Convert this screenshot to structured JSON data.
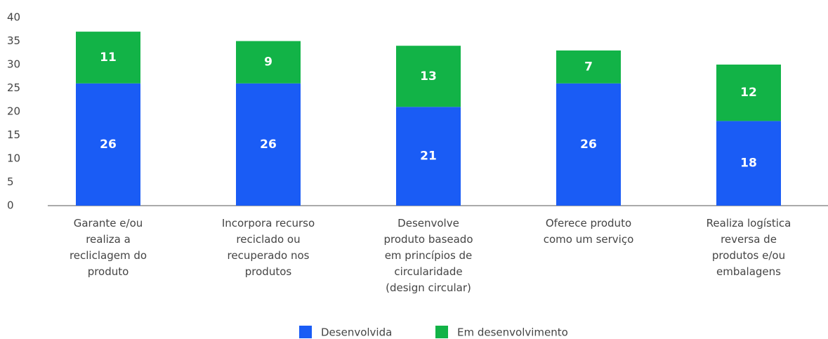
{
  "chart_data": {
    "type": "stacked_bar",
    "categories": [
      "Garante e/ou realiza a recliclagem do produto",
      "Incorpora recurso reciclado ou recuperado nos produtos",
      "Desenvolve produto baseado em princípios de circularidade (design circular)",
      "Oferece produto como um serviço",
      "Realiza logística reversa de produtos e/ou embalagens"
    ],
    "series": [
      {
        "name": "Desenvolvida",
        "color": "#1a5cf5",
        "values": [
          26,
          26,
          21,
          26,
          18
        ]
      },
      {
        "name": "Em desenvolvimento",
        "color": "#12b347",
        "values": [
          11,
          9,
          13,
          7,
          12
        ]
      }
    ],
    "ylim": [
      0,
      40
    ],
    "yticks": [
      0,
      5,
      10,
      15,
      20,
      25,
      30,
      35,
      40
    ],
    "grid": false
  }
}
